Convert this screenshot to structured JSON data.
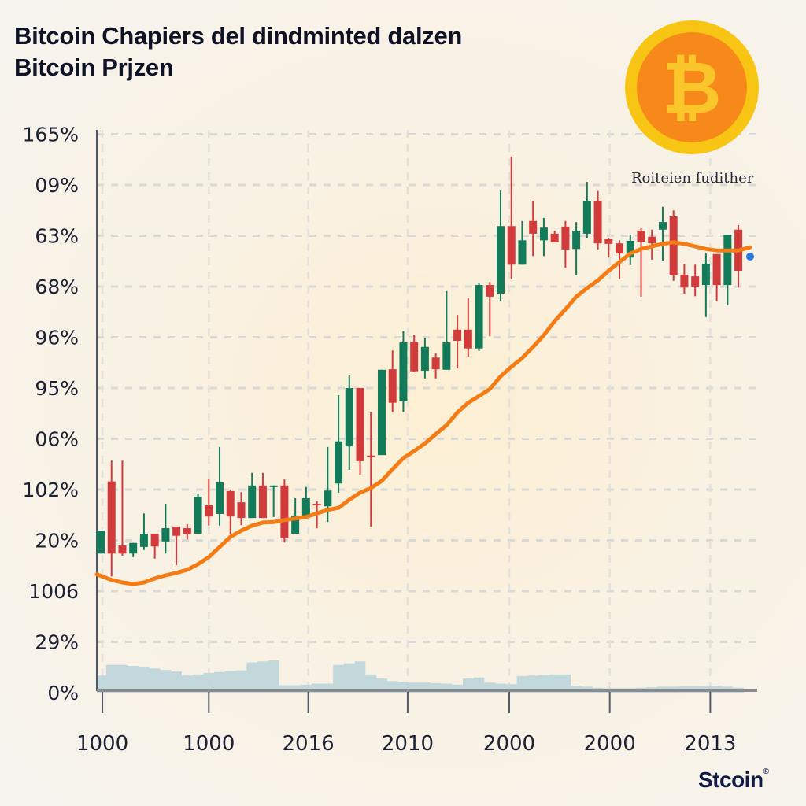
{
  "title": {
    "line1": "Bitcoin Chapiers del dindminted dalzen",
    "line2": "Bitcoin Prjzen"
  },
  "legend": {
    "label": "Roiteien fudither"
  },
  "logo": {
    "symbol": "₿",
    "icon": "bitcoin-coin-icon"
  },
  "brand": {
    "text": "Stcoin",
    "mark": "®"
  },
  "colors": {
    "up": "#137a5a",
    "down": "#d23b3b",
    "moving_average": "#f47c14",
    "volume": "#b9d3d9",
    "coin_outer": "#f8c515",
    "coin_inner": "#f7891a"
  },
  "chart_data": {
    "type": "candlestick",
    "grid": true,
    "y_tick_labels": [
      "0%",
      "29%",
      "1006",
      "20%",
      "102%",
      "06%",
      "95%",
      "96%",
      "68%",
      "63%",
      "09%",
      "165%"
    ],
    "x_tick_labels": [
      "1000",
      "1000",
      "2016",
      "2010",
      "2000",
      "2000",
      "2013"
    ],
    "ohlc": [
      [
        2.74,
        3.19,
        2.74,
        3.19
      ],
      [
        4.16,
        4.57,
        2.29,
        2.74
      ],
      [
        2.9,
        4.57,
        2.7,
        2.74
      ],
      [
        2.74,
        2.95,
        2.67,
        2.95
      ],
      [
        2.87,
        3.53,
        2.81,
        3.13
      ],
      [
        3.13,
        3.13,
        2.64,
        2.88
      ],
      [
        2.98,
        3.72,
        2.74,
        3.24
      ],
      [
        3.27,
        3.27,
        2.51,
        3.09
      ],
      [
        3.24,
        3.32,
        3.02,
        3.12
      ],
      [
        3.13,
        3.92,
        3.13,
        3.86
      ],
      [
        3.69,
        4.22,
        3.29,
        3.47
      ],
      [
        3.52,
        4.84,
        3.29,
        4.14
      ],
      [
        3.97,
        4.0,
        3.13,
        3.47
      ],
      [
        3.75,
        3.95,
        3.3,
        3.44
      ],
      [
        3.44,
        4.33,
        3.44,
        4.08
      ],
      [
        4.08,
        4.33,
        3.44,
        3.44
      ],
      [
        4.06,
        4.08,
        3.46,
        4.08
      ],
      [
        4.08,
        4.2,
        2.96,
        3.04
      ],
      [
        3.13,
        3.83,
        3.13,
        3.49
      ],
      [
        3.49,
        4.05,
        3.49,
        3.83
      ],
      [
        3.72,
        3.77,
        3.24,
        3.69
      ],
      [
        3.67,
        4.84,
        3.36,
        3.98
      ],
      [
        4.12,
        5.86,
        3.94,
        4.95
      ],
      [
        4.85,
        6.25,
        4.39,
        6.0
      ],
      [
        6.0,
        6.0,
        4.29,
        4.56
      ],
      [
        4.67,
        5.52,
        3.27,
        4.64
      ],
      [
        4.68,
        6.36,
        4.68,
        6.36
      ],
      [
        6.37,
        6.74,
        5.53,
        5.71
      ],
      [
        5.74,
        7.12,
        5.53,
        6.9
      ],
      [
        6.91,
        7.05,
        6.31,
        6.33
      ],
      [
        6.34,
        6.99,
        6.19,
        6.81
      ],
      [
        6.6,
        6.68,
        6.19,
        6.37
      ],
      [
        6.36,
        7.91,
        6.36,
        6.9
      ],
      [
        7.15,
        7.44,
        6.39,
        6.93
      ],
      [
        7.15,
        7.77,
        6.62,
        6.78
      ],
      [
        6.78,
        8.06,
        6.73,
        8.03
      ],
      [
        8.03,
        8.09,
        7.02,
        7.8
      ],
      [
        7.86,
        9.89,
        7.72,
        9.19
      ],
      [
        9.19,
        10.56,
        8.14,
        8.43
      ],
      [
        8.43,
        9.29,
        8.43,
        8.91
      ],
      [
        9.29,
        9.69,
        8.6,
        9.04
      ],
      [
        8.91,
        9.35,
        8.6,
        9.16
      ],
      [
        9.04,
        9.1,
        8.87,
        8.87
      ],
      [
        9.18,
        9.29,
        8.37,
        8.73
      ],
      [
        8.74,
        9.27,
        8.22,
        9.1
      ],
      [
        9.04,
        10.06,
        8.95,
        9.69
      ],
      [
        9.69,
        9.88,
        8.73,
        8.85
      ],
      [
        8.93,
        8.95,
        8.57,
        8.84
      ],
      [
        8.85,
        8.91,
        8.14,
        8.65
      ],
      [
        8.57,
        9.02,
        8.42,
        8.9
      ],
      [
        9.1,
        9.15,
        7.8,
        8.88
      ],
      [
        8.98,
        9.12,
        8.53,
        8.85
      ],
      [
        9.12,
        9.57,
        8.51,
        9.27
      ],
      [
        9.38,
        9.5,
        8.11,
        8.22
      ],
      [
        8.23,
        8.45,
        7.86,
        7.98
      ],
      [
        8.2,
        8.43,
        7.81,
        8.0
      ],
      [
        8.03,
        8.65,
        7.4,
        8.45
      ],
      [
        8.64,
        8.64,
        7.71,
        8.03
      ],
      [
        8.03,
        9.02,
        7.63,
        9.02
      ],
      [
        9.12,
        9.21,
        7.98,
        8.31
      ]
    ],
    "moving_average": [
      2.33,
      2.22,
      2.17,
      2.14,
      2.17,
      2.25,
      2.31,
      2.36,
      2.42,
      2.53,
      2.67,
      2.87,
      3.07,
      3.19,
      3.29,
      3.35,
      3.36,
      3.4,
      3.43,
      3.46,
      3.53,
      3.6,
      3.64,
      3.8,
      3.94,
      4.03,
      4.17,
      4.4,
      4.62,
      4.76,
      4.91,
      5.09,
      5.27,
      5.52,
      5.71,
      5.84,
      5.98,
      6.23,
      6.42,
      6.59,
      6.81,
      7.04,
      7.32,
      7.55,
      7.8,
      7.97,
      8.12,
      8.31,
      8.48,
      8.65,
      8.74,
      8.79,
      8.84,
      8.87,
      8.84,
      8.79,
      8.74,
      8.71,
      8.71,
      8.71
    ],
    "volume": [
      0.26,
      0.47,
      0.47,
      0.45,
      0.42,
      0.4,
      0.37,
      0.34,
      0.26,
      0.28,
      0.31,
      0.33,
      0.35,
      0.36,
      0.52,
      0.54,
      0.56,
      0.07,
      0.07,
      0.08,
      0.1,
      0.1,
      0.47,
      0.5,
      0.54,
      0.28,
      0.2,
      0.15,
      0.14,
      0.12,
      0.12,
      0.11,
      0.1,
      0.08,
      0.2,
      0.22,
      0.12,
      0.1,
      0.09,
      0.25,
      0.26,
      0.27,
      0.28,
      0.28,
      0.06,
      0.04,
      0.02,
      0.01,
      0.01,
      0.01,
      0.02,
      0.03,
      0.04,
      0.04,
      0.05,
      0.05,
      0.05,
      0.06,
      0.04,
      0.02
    ]
  }
}
